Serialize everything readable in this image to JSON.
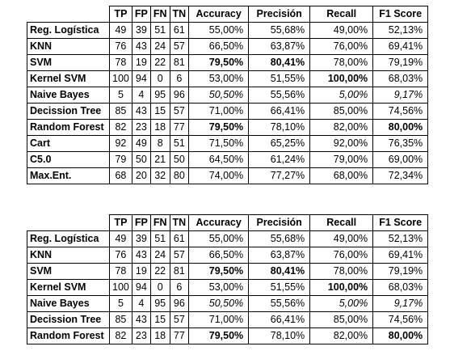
{
  "headers": [
    "TP",
    "FP",
    "FN",
    "TN",
    "Accuracy",
    "Precisión",
    "Recall",
    "F1 Score"
  ],
  "tables": [
    {
      "rows": [
        {
          "name": "Reg. Logística",
          "tp": "49",
          "fp": "39",
          "fn": "51",
          "tn": "61",
          "accuracy": "55,00%",
          "precision": "55,68%",
          "recall": "49,00%",
          "f1": "52,13%"
        },
        {
          "name": "KNN",
          "tp": "76",
          "fp": "43",
          "fn": "24",
          "tn": "57",
          "accuracy": "66,50%",
          "precision": "63,87%",
          "recall": "76,00%",
          "f1": "69,41%"
        },
        {
          "name": "SVM",
          "tp": "78",
          "fp": "19",
          "fn": "22",
          "tn": "81",
          "accuracy": "79,50%",
          "precision": "80,41%",
          "recall": "78,00%",
          "f1": "79,19%",
          "bold": [
            "accuracy",
            "precision"
          ]
        },
        {
          "name": "Kernel SVM",
          "tp": "100",
          "fp": "94",
          "fn": "0",
          "tn": "6",
          "accuracy": "53,00%",
          "precision": "51,55%",
          "recall": "100,00%",
          "f1": "68,03%",
          "bold": [
            "recall"
          ]
        },
        {
          "name": "Naive Bayes",
          "tp": "5",
          "fp": "4",
          "fn": "95",
          "tn": "96",
          "accuracy": "50,50%",
          "precision": "55,56%",
          "recall": "5,00%",
          "f1": "9,17%",
          "italic": [
            "accuracy",
            "recall",
            "f1"
          ]
        },
        {
          "name": "Decission Tree",
          "tp": "85",
          "fp": "43",
          "fn": "15",
          "tn": "57",
          "accuracy": "71,00%",
          "precision": "66,41%",
          "recall": "85,00%",
          "f1": "74,56%"
        },
        {
          "name": "Random Forest",
          "tp": "82",
          "fp": "23",
          "fn": "18",
          "tn": "77",
          "accuracy": "79,50%",
          "precision": "78,10%",
          "recall": "82,00%",
          "f1": "80,00%",
          "bold": [
            "accuracy",
            "f1"
          ]
        },
        {
          "name": "Cart",
          "tp": "92",
          "fp": "49",
          "fn": "8",
          "tn": "51",
          "accuracy": "71,50%",
          "precision": "65,25%",
          "recall": "92,00%",
          "f1": "76,35%"
        },
        {
          "name": "C5.0",
          "tp": "79",
          "fp": "50",
          "fn": "21",
          "tn": "50",
          "accuracy": "64,50%",
          "precision": "61,24%",
          "recall": "79,00%",
          "f1": "69,00%"
        },
        {
          "name": "Max.Ent.",
          "tp": "68",
          "fp": "20",
          "fn": "32",
          "tn": "80",
          "accuracy": "74,00%",
          "precision": "77,27%",
          "recall": "68,00%",
          "f1": "72,34%"
        }
      ]
    },
    {
      "rows": [
        {
          "name": "Reg. Logística",
          "tp": "49",
          "fp": "39",
          "fn": "51",
          "tn": "61",
          "accuracy": "55,00%",
          "precision": "55,68%",
          "recall": "49,00%",
          "f1": "52,13%"
        },
        {
          "name": "KNN",
          "tp": "76",
          "fp": "43",
          "fn": "24",
          "tn": "57",
          "accuracy": "66,50%",
          "precision": "63,87%",
          "recall": "76,00%",
          "f1": "69,41%"
        },
        {
          "name": "SVM",
          "tp": "78",
          "fp": "19",
          "fn": "22",
          "tn": "81",
          "accuracy": "79,50%",
          "precision": "80,41%",
          "recall": "78,00%",
          "f1": "79,19%",
          "bold": [
            "accuracy",
            "precision"
          ]
        },
        {
          "name": "Kernel SVM",
          "tp": "100",
          "fp": "94",
          "fn": "0",
          "tn": "6",
          "accuracy": "53,00%",
          "precision": "51,55%",
          "recall": "100,00%",
          "f1": "68,03%",
          "bold": [
            "recall"
          ]
        },
        {
          "name": "Naive Bayes",
          "tp": "5",
          "fp": "4",
          "fn": "95",
          "tn": "96",
          "accuracy": "50,50%",
          "precision": "55,56%",
          "recall": "5,00%",
          "f1": "9,17%",
          "italic": [
            "accuracy",
            "recall",
            "f1"
          ]
        },
        {
          "name": "Decission Tree",
          "tp": "85",
          "fp": "43",
          "fn": "15",
          "tn": "57",
          "accuracy": "71,00%",
          "precision": "66,41%",
          "recall": "85,00%",
          "f1": "74,56%"
        },
        {
          "name": "Random Forest",
          "tp": "82",
          "fp": "23",
          "fn": "18",
          "tn": "77",
          "accuracy": "79,50%",
          "precision": "78,10%",
          "recall": "82,00%",
          "f1": "80,00%",
          "bold": [
            "accuracy",
            "f1"
          ]
        }
      ]
    }
  ]
}
